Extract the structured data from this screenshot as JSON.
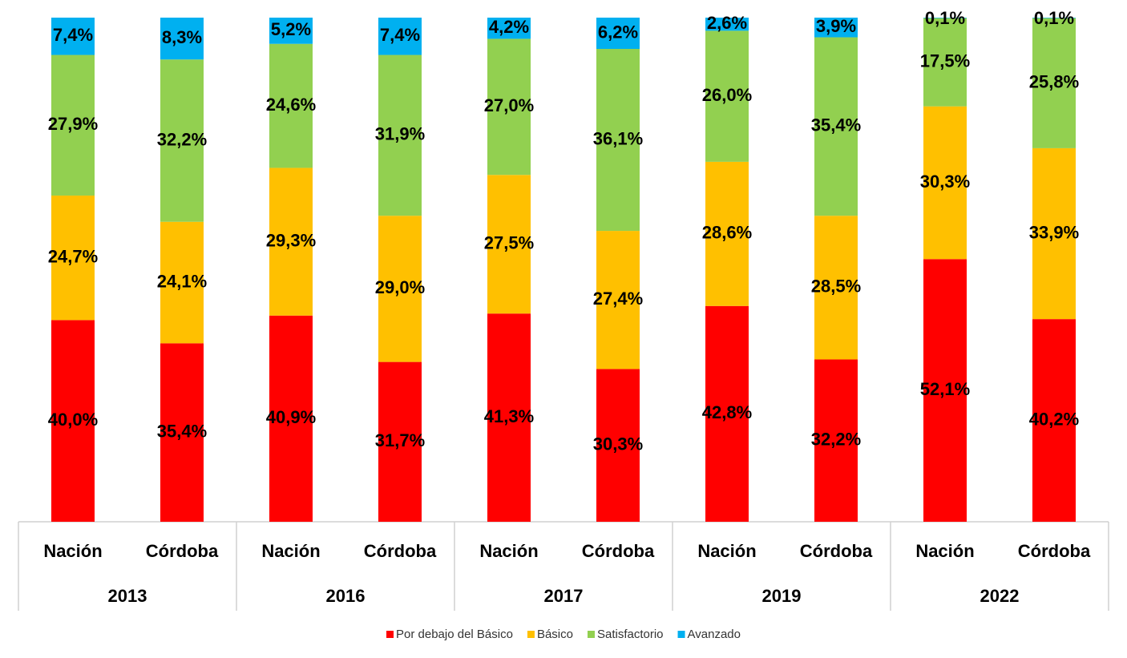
{
  "chart_data": {
    "type": "stacked-bar",
    "categories": [
      "Nación",
      "Córdoba",
      "Nación",
      "Córdoba",
      "Nación",
      "Córdoba",
      "Nación",
      "Córdoba",
      "Nación",
      "Córdoba"
    ],
    "groups": [
      "2013",
      "2016",
      "2017",
      "2019",
      "2022"
    ],
    "ylim": [
      0,
      100
    ],
    "series": [
      {
        "name": "Por debajo del Básico",
        "color": "#ff0000",
        "values": [
          40.0,
          35.4,
          40.9,
          31.7,
          41.3,
          30.3,
          42.8,
          32.2,
          52.1,
          40.2
        ],
        "value_labels": [
          "40,0%",
          "35,4%",
          "40,9%",
          "31,7%",
          "41,3%",
          "30,3%",
          "42,8%",
          "32,2%",
          "52,1%",
          "40,2%"
        ]
      },
      {
        "name": "Básico",
        "color": "#ffc000",
        "values": [
          24.7,
          24.1,
          29.3,
          29.0,
          27.5,
          27.4,
          28.6,
          28.5,
          30.3,
          33.9
        ],
        "value_labels": [
          "24,7%",
          "24,1%",
          "29,3%",
          "29,0%",
          "27,5%",
          "27,4%",
          "28,6%",
          "28,5%",
          "30,3%",
          "33,9%"
        ]
      },
      {
        "name": "Satisfactorio",
        "color": "#92d050",
        "values": [
          27.9,
          32.2,
          24.6,
          31.9,
          27.0,
          36.1,
          26.0,
          35.4,
          17.5,
          25.8
        ],
        "value_labels": [
          "27,9%",
          "32,2%",
          "24,6%",
          "31,9%",
          "27,0%",
          "36,1%",
          "26,0%",
          "35,4%",
          "17,5%",
          "25,8%"
        ]
      },
      {
        "name": "Avanzado",
        "color": "#00b0f0",
        "values": [
          7.4,
          8.3,
          5.2,
          7.4,
          4.2,
          6.2,
          2.6,
          3.9,
          0.1,
          0.1
        ],
        "value_labels": [
          "7,4%",
          "8,3%",
          "5,2%",
          "7,4%",
          "4,2%",
          "6,2%",
          "2,6%",
          "3,9%",
          "0,1%",
          "0,1%"
        ]
      }
    ],
    "legend": "bottom"
  }
}
